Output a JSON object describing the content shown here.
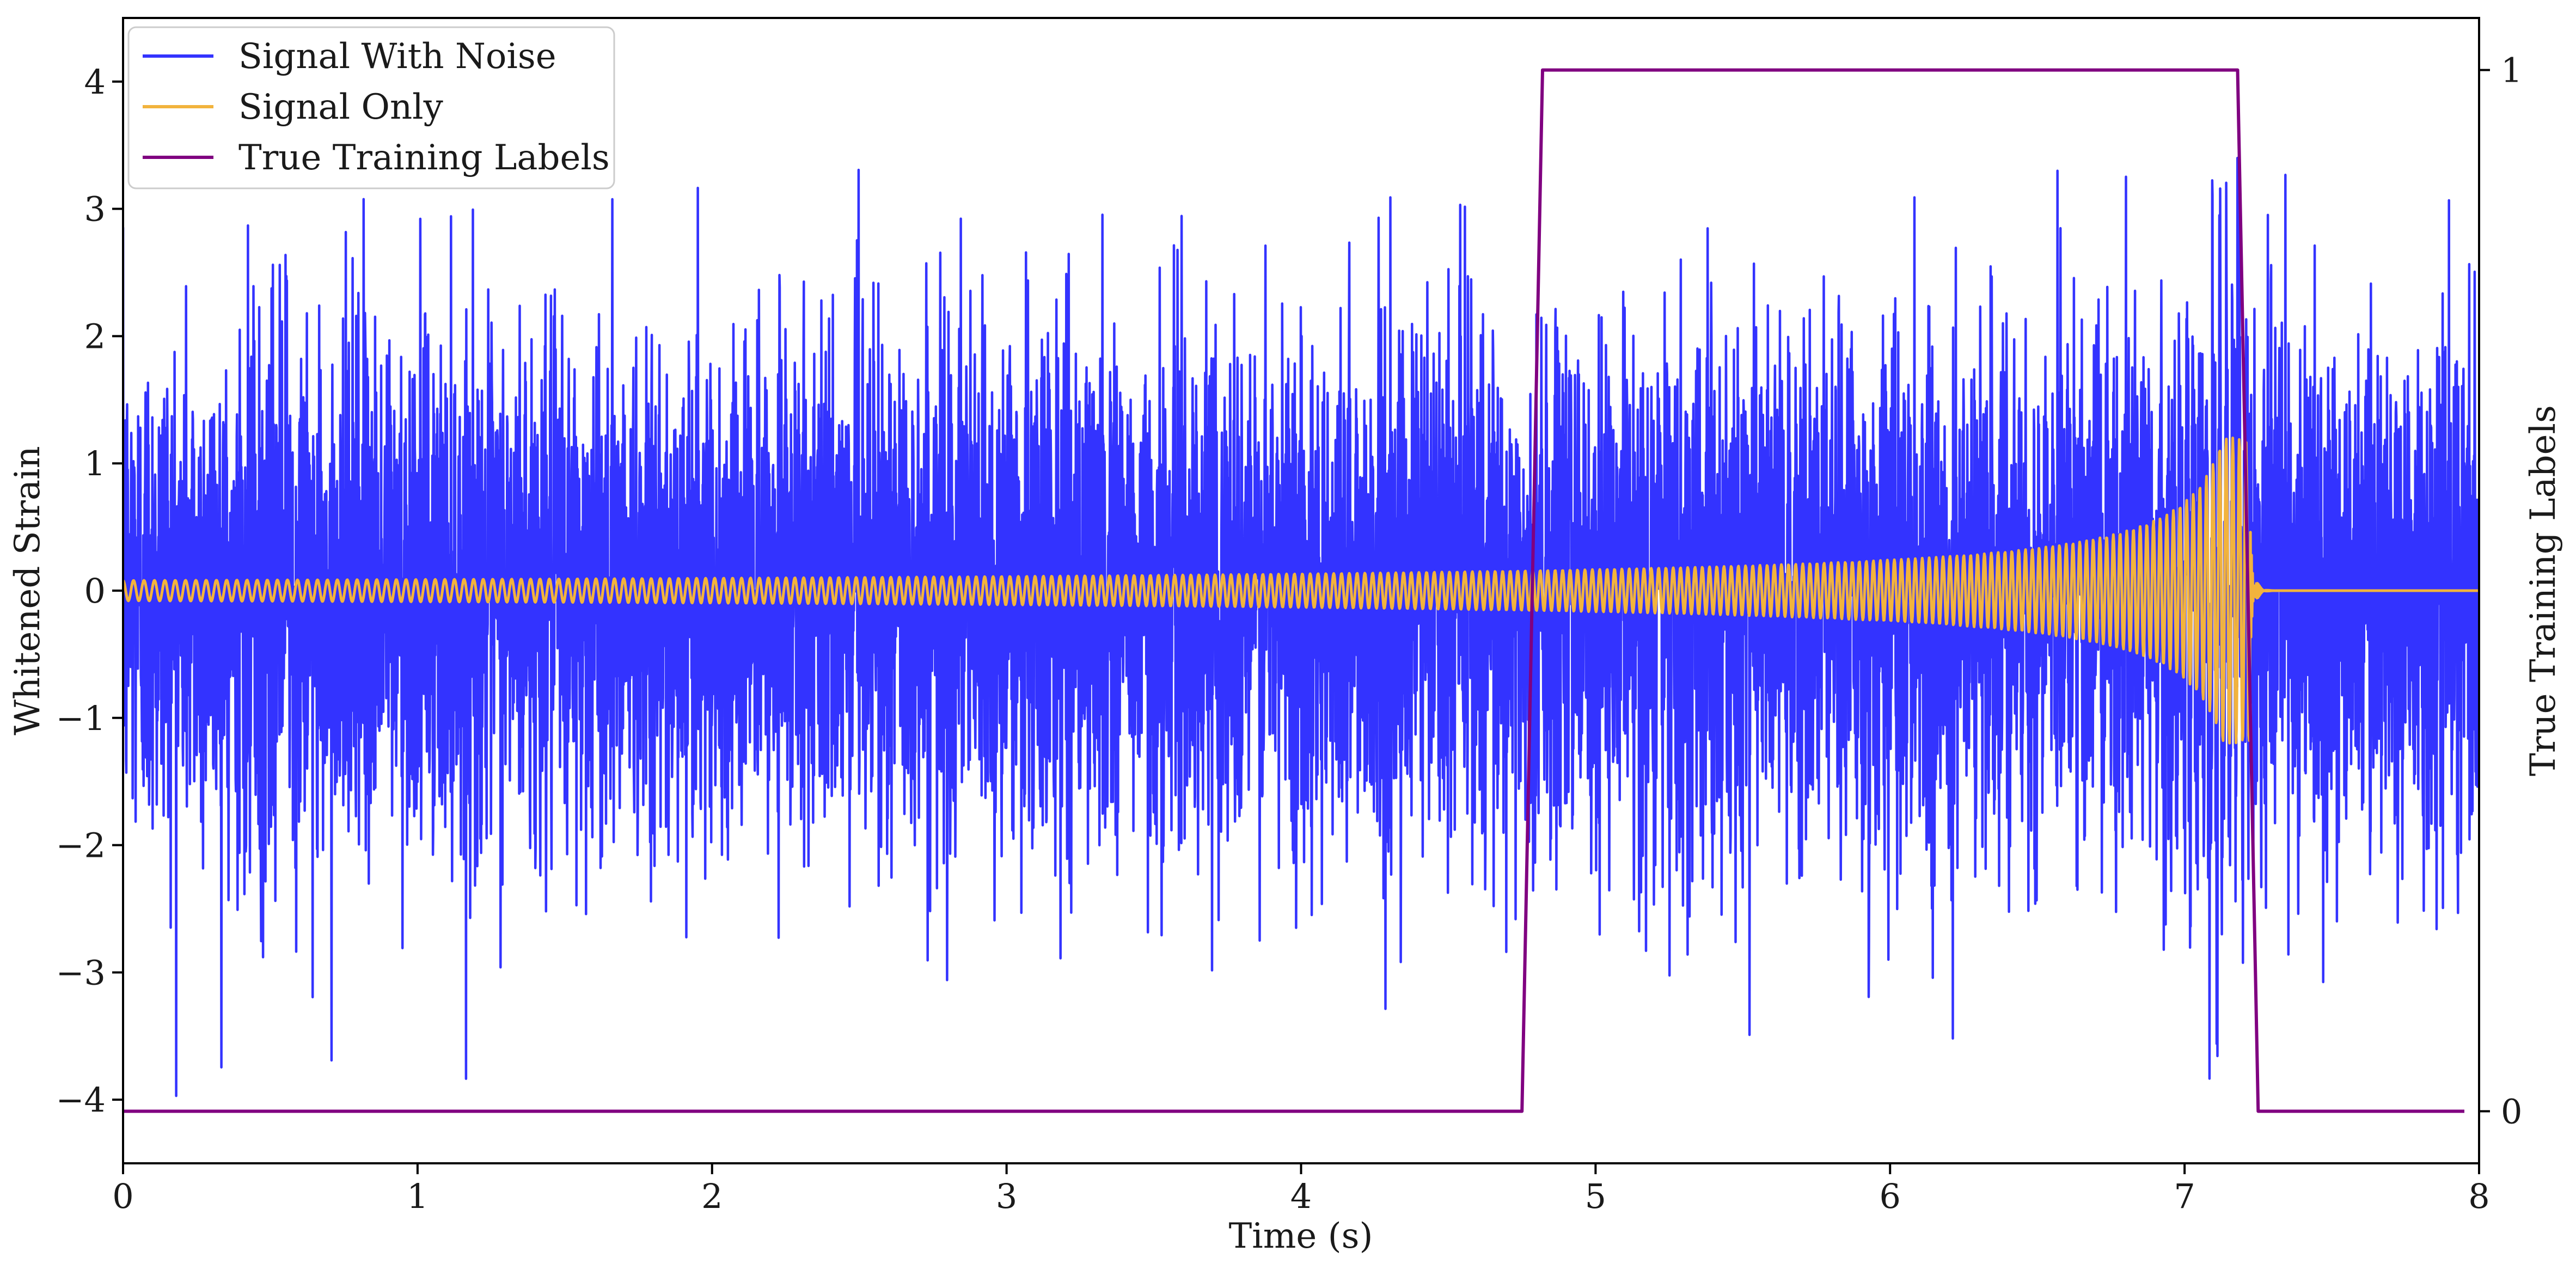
{
  "chart_data": {
    "type": "line",
    "xlabel": "Time (s)",
    "ylabel": "Whitened Strain",
    "y2label": "True Training Labels",
    "xlim": [
      0,
      8
    ],
    "ylim": [
      -4.5,
      4.5
    ],
    "y2lim": [
      -0.05,
      1.05
    ],
    "xticks": [
      0,
      1,
      2,
      3,
      4,
      5,
      6,
      7,
      8
    ],
    "yticks": [
      -4,
      -3,
      -2,
      -1,
      0,
      1,
      2,
      3,
      4
    ],
    "y2ticks": [
      0,
      1
    ],
    "grid": false,
    "legend_position": "top-left",
    "colors": {
      "noise": "#3333ff",
      "signal": "#f2b33d",
      "labels": "#800080"
    },
    "series": [
      {
        "name": "Signal With Noise",
        "axis": "left",
        "description_stats": {
          "x_range": [
            0,
            8
          ],
          "typical_abs_max": 2.6,
          "min": -4.0,
          "max": 3.4,
          "peak_x": 7.18
        }
      },
      {
        "name": "Signal Only",
        "axis": "left",
        "chirp": {
          "t_start": 0,
          "t_merger": 7.22,
          "t_end": 8,
          "amplitude_start": 0.08,
          "amplitude_peak": 1.2,
          "freq_start_hz": 28,
          "freq_end_hz": 45
        }
      },
      {
        "name": "True Training Labels",
        "axis": "right",
        "x": [
          0,
          4.75,
          4.82,
          7.18,
          7.25,
          7.95
        ],
        "y": [
          0,
          0,
          1,
          1,
          0,
          0
        ]
      }
    ]
  }
}
